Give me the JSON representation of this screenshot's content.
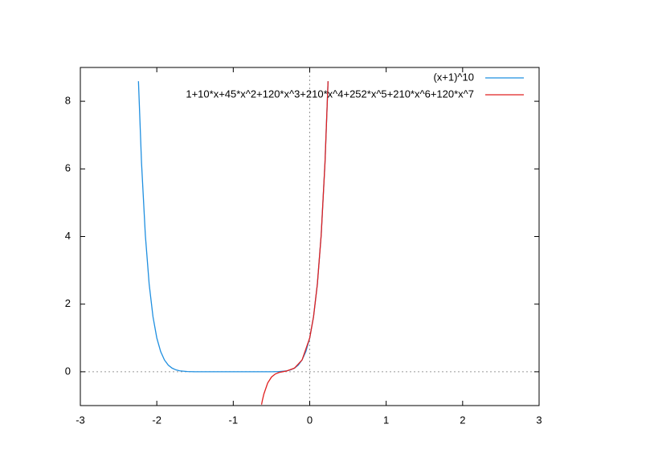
{
  "chart_data": {
    "type": "line",
    "xlim": [
      -3,
      3
    ],
    "xticks": [
      -3,
      -2,
      -1,
      0,
      1,
      2,
      3
    ],
    "ylim": [
      -1,
      9
    ],
    "yticks": [
      0,
      2,
      4,
      6,
      8
    ],
    "zero_axes": true,
    "legend": "top-right",
    "series": [
      {
        "name": "(x+1)^10",
        "color": "#1f8fe0",
        "x": [
          -2.24,
          -2.2,
          -2.15,
          -2.1,
          -2.05,
          -2.0,
          -1.95,
          -1.9,
          -1.85,
          -1.8,
          -1.75,
          -1.7,
          -1.6,
          -1.5,
          -1.0,
          -0.5,
          -0.4,
          -0.3,
          -0.25,
          -0.2,
          -0.15,
          -0.1,
          -0.05,
          0,
          0.05,
          0.1,
          0.15,
          0.2,
          0.24
        ],
        "values": [
          8.594,
          6.192,
          4.046,
          2.594,
          1.629,
          1,
          0.599,
          0.349,
          0.197,
          0.107,
          0.056,
          0.028,
          0.006,
          0.001,
          0,
          0.001,
          0.006,
          0.028,
          0.056,
          0.107,
          0.197,
          0.349,
          0.599,
          1,
          1.629,
          2.594,
          4.046,
          6.192,
          8.594
        ]
      },
      {
        "name": "1+10*x+45*x^2+120*x^3+210*x^4+252*x^5+210*x^6+120*x^7",
        "color": "#e02020",
        "x": [
          -0.63,
          -0.62,
          -0.6,
          -0.55,
          -0.5,
          -0.45,
          -0.4,
          -0.35,
          -0.3,
          -0.2,
          -0.1,
          0,
          0.05,
          0.1,
          0.15,
          0.2,
          0.24
        ],
        "values": [
          -0.97,
          -0.855,
          -0.661,
          -0.333,
          -0.156,
          -0.065,
          -0.021,
          0.002,
          0.025,
          0.107,
          0.349,
          1,
          1.629,
          2.594,
          4.045,
          6.192,
          8.593
        ]
      }
    ]
  }
}
